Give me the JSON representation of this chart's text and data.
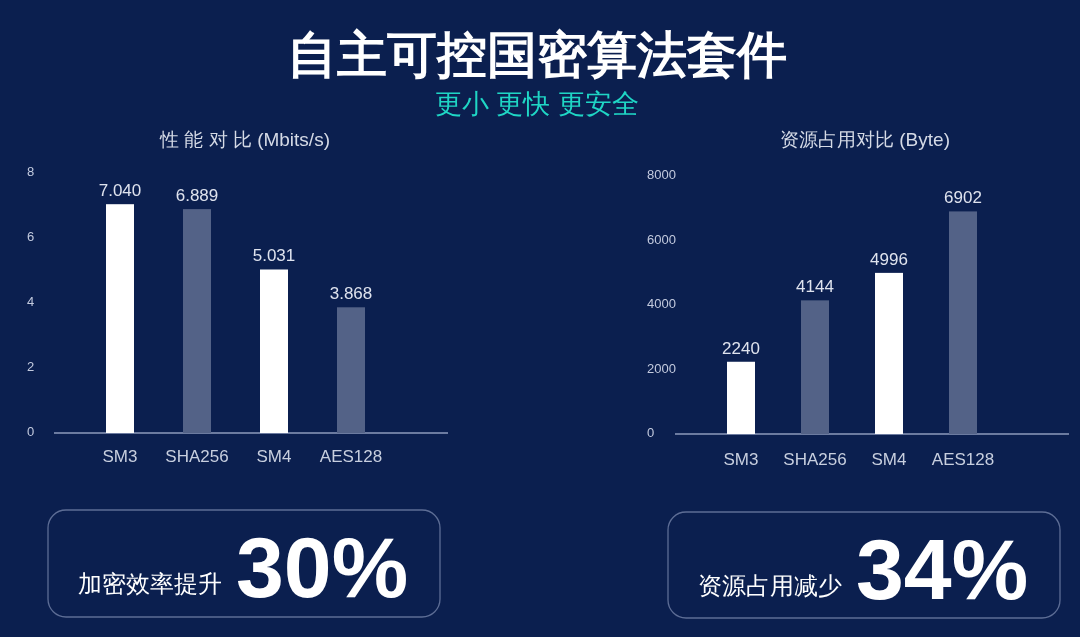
{
  "chart_data": [
    {
      "type": "other",
      "title": "自主可控国密算法套件",
      "subtitle": "更小 更快 更安全"
    },
    {
      "type": "bar",
      "title": "性 能 对 比 (Mbits/s)",
      "categories": [
        "SM3",
        "SHA256",
        "SM4",
        "AES128"
      ],
      "values": [
        7.04,
        6.889,
        5.031,
        3.868
      ],
      "value_labels": [
        "7.040",
        "6.889",
        "5.031",
        "3.868"
      ],
      "colors": [
        "#ffffff",
        "#536287",
        "#ffffff",
        "#536287"
      ],
      "ylim": [
        0,
        8
      ],
      "yticks": [
        0,
        2,
        4,
        6,
        8
      ]
    },
    {
      "type": "bar",
      "title": "资源占用对比 (Byte)",
      "categories": [
        "SM3",
        "SHA256",
        "SM4",
        "AES128"
      ],
      "values": [
        2240,
        4144,
        4996,
        6902
      ],
      "data_labels": true,
      "colors": [
        "#ffffff",
        "#536287",
        "#ffffff",
        "#536287"
      ],
      "ylim": [
        0,
        8000
      ],
      "yticks": [
        0,
        2000,
        4000,
        6000,
        8000
      ]
    },
    {
      "type": "other",
      "annotations": [
        "加密效率提升",
        "30%"
      ]
    },
    {
      "type": "other",
      "annotations": [
        "资源占用减少",
        "34%"
      ]
    }
  ]
}
